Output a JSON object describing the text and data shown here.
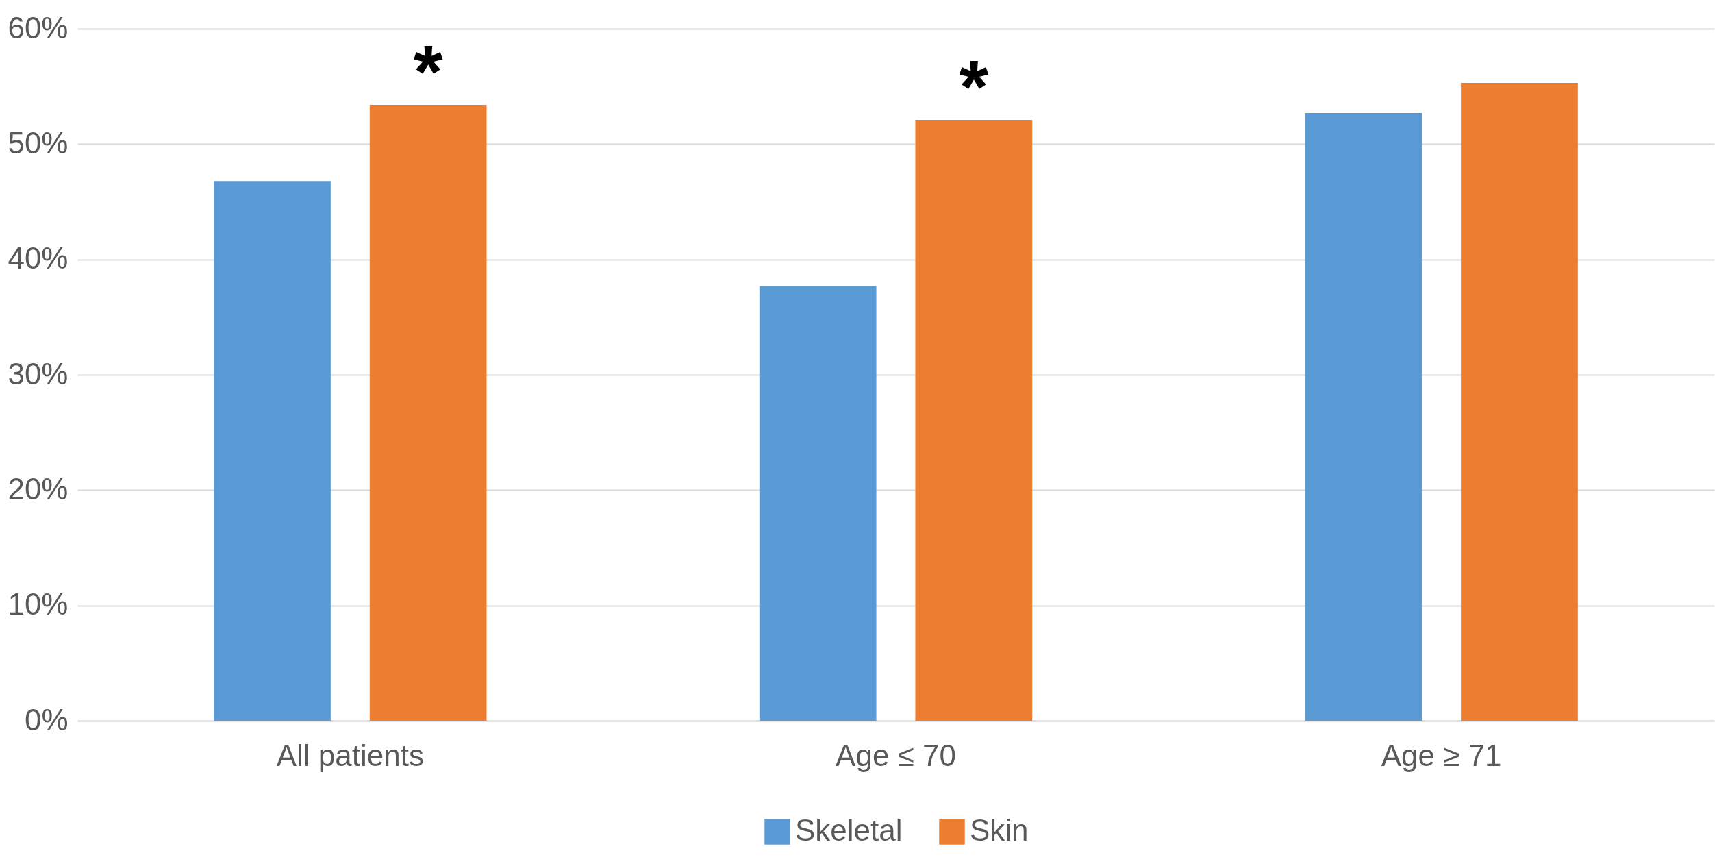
{
  "chart_data": {
    "type": "bar",
    "categories": [
      "All patients",
      "Age ≤ 70",
      "Age ≥ 71"
    ],
    "series": [
      {
        "name": "Skeletal",
        "color": "#5b9bd5",
        "values": [
          46.8,
          37.7,
          52.7
        ]
      },
      {
        "name": "Skin",
        "color": "#ed7d31",
        "values": [
          53.4,
          52.1,
          55.3
        ]
      }
    ],
    "ylim": [
      0,
      60
    ],
    "yticks": [
      {
        "value": 0,
        "label": "0%"
      },
      {
        "value": 10,
        "label": "10%"
      },
      {
        "value": 20,
        "label": "20%"
      },
      {
        "value": 30,
        "label": "30%"
      },
      {
        "value": 40,
        "label": "40%"
      },
      {
        "value": 50,
        "label": "50%"
      },
      {
        "value": 60,
        "label": "60%"
      }
    ],
    "annotations": [
      "*",
      "*"
    ],
    "grid": "y",
    "legend": "bottom"
  }
}
